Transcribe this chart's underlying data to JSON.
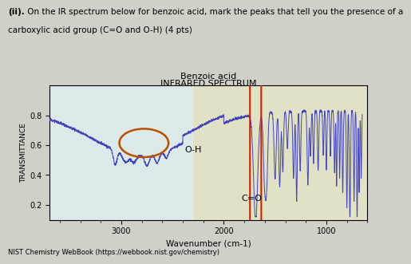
{
  "title_line1": "Benzoic acid",
  "title_line2": "INFRARED SPECTRUM",
  "xlabel": "Wavenumber (cm-1)",
  "ylabel": "TRANSMITTANCE",
  "question_text_bold": "(ii).",
  "question_text_normal": " On the IR spectrum below for benzoic acid, mark the peaks that tell you the presence of a\ncarboxylic acid group (C=O and O-H) (4 pts)",
  "footnote": "NIST Chemistry WebBook (https://webbook.nist.gov/chemistry)",
  "xlim": [
    3700,
    600
  ],
  "ylim": [
    0.1,
    1.0
  ],
  "yticks": [
    0.2,
    0.4,
    0.6,
    0.8
  ],
  "xticks": [
    3000,
    2000,
    1000
  ],
  "oh_label": "O-H",
  "co_label": "C=O",
  "outer_bg": "#c8c8c8",
  "plot_bg_left": "#e0ecf0",
  "plot_bg_right": "#e8e4c0",
  "line_color": "#4444bb",
  "ellipse_color": "#b85000",
  "circle_color": "#cc2200",
  "title_color": "#222222"
}
